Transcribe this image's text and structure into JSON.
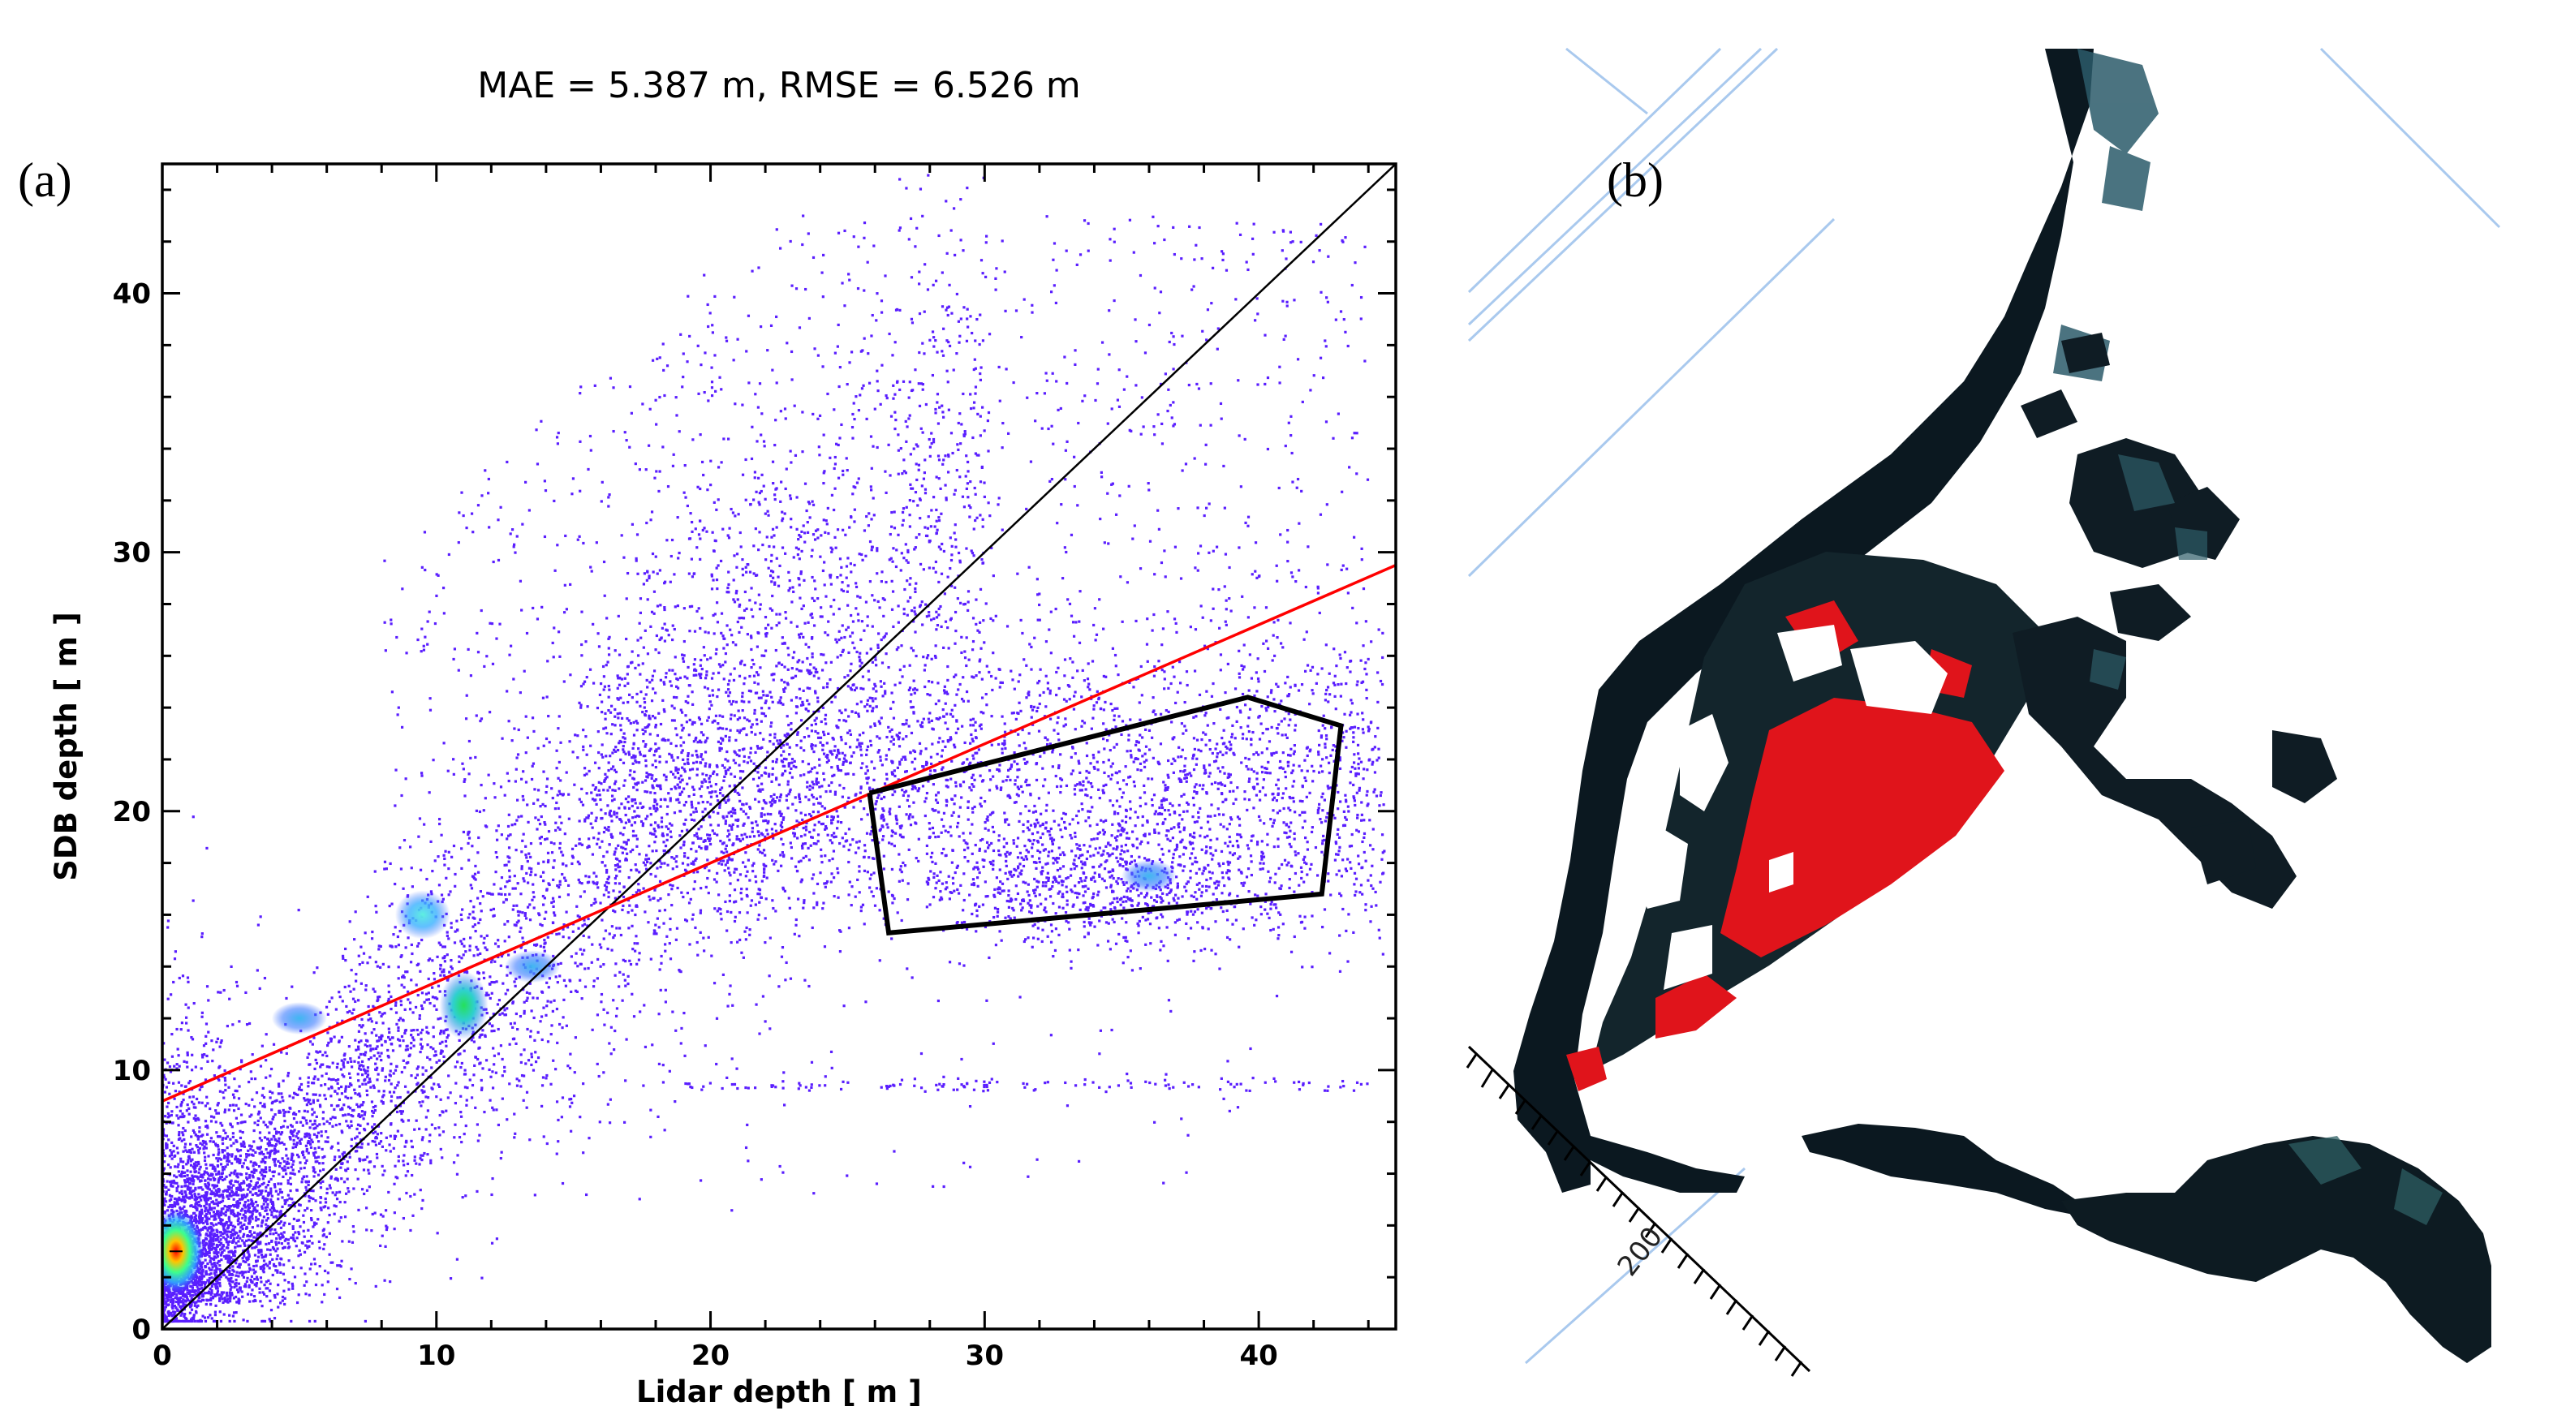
{
  "panel_a": {
    "letter": "(a)",
    "chart_data": {
      "type": "scatter",
      "title": "MAE = 5.387 m, RMSE = 6.526 m",
      "xlabel": "Lidar depth [ m ]",
      "ylabel": "SDB depth [ m ]",
      "xlim": [
        0,
        45
      ],
      "ylim": [
        0,
        45
      ],
      "xticks": [
        0,
        10,
        20,
        30,
        40
      ],
      "yticks": [
        0,
        10,
        20,
        30,
        40
      ],
      "xtick_labels": [
        "0",
        "10",
        "20",
        "30",
        "40"
      ],
      "ytick_labels": [
        "0",
        "10",
        "20",
        "30",
        "40"
      ],
      "identity_line": {
        "x": [
          0,
          45
        ],
        "y": [
          0,
          45
        ],
        "color": "#000000"
      },
      "regression_line": {
        "x": [
          0,
          45
        ],
        "y": [
          8.8,
          29.5
        ],
        "color": "#ff0000"
      },
      "outlier_polygon": {
        "x": [
          25.8,
          26.5,
          42.3,
          43.0,
          39.6,
          25.8
        ],
        "y": [
          20.7,
          15.3,
          16.8,
          23.3,
          24.4,
          20.7
        ],
        "color": "#000000"
      },
      "density_clusters": [
        {
          "x": 0.5,
          "y": 3.0,
          "level": "max"
        },
        {
          "x": 11.0,
          "y": 12.5,
          "level": "high"
        },
        {
          "x": 9.5,
          "y": 16.0,
          "level": "medium"
        },
        {
          "x": 36.0,
          "y": 17.5,
          "level": "low"
        },
        {
          "x": 13.5,
          "y": 14.0,
          "level": "low"
        },
        {
          "x": 5.0,
          "y": 12.0,
          "level": "low"
        }
      ],
      "point_color": "#5a1eff"
    }
  },
  "panel_b": {
    "letter": "(b)",
    "scale_label": "200"
  }
}
